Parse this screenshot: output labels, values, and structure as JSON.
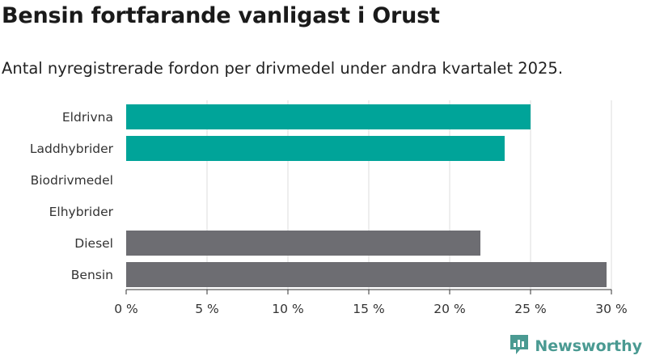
{
  "chart_data": {
    "type": "bar",
    "orientation": "horizontal",
    "title": "Bensin fortfarande vanligast i Orust",
    "subtitle": "Antal nyregistrerade fordon per drivmedel under andra kvartalet 2025.",
    "categories": [
      "Eldrivna",
      "Laddhybrider",
      "Biodrivmedel",
      "Elhybrider",
      "Diesel",
      "Bensin"
    ],
    "values": [
      25.0,
      23.4,
      0,
      0,
      21.9,
      29.7
    ],
    "bar_colors": [
      "#00a499",
      "#00a499",
      "#00a499",
      "#00a499",
      "#6d6d72",
      "#6d6d72"
    ],
    "xlim": [
      0,
      30
    ],
    "xticks": [
      0,
      5,
      10,
      15,
      20,
      25,
      30
    ],
    "xtick_labels": [
      "0 %",
      "5 %",
      "10 %",
      "15 %",
      "20 %",
      "25 %",
      "30 %"
    ],
    "grid": true,
    "xlabel": "",
    "ylabel": ""
  },
  "brand": {
    "name": "Newsworthy",
    "icon": "newsworthy-logo-icon",
    "color": "#4a9a92"
  }
}
